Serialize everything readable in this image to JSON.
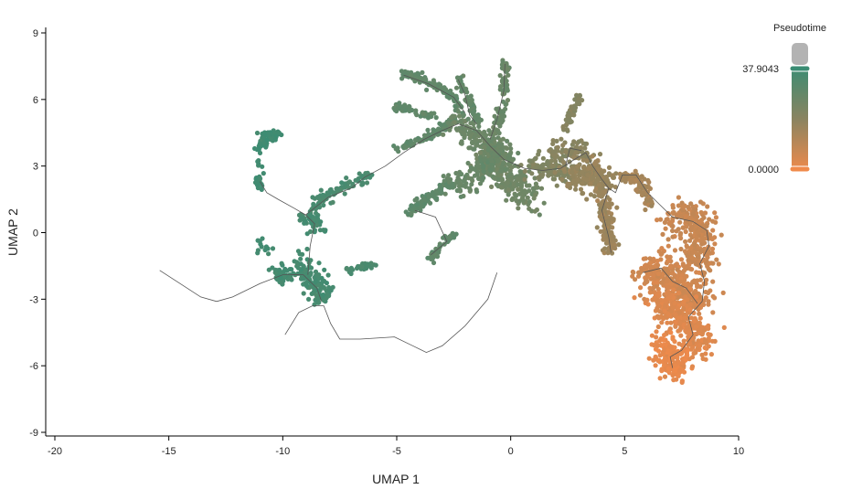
{
  "chart_data": {
    "type": "scatter",
    "title": "",
    "xlabel": "UMAP 1",
    "ylabel": "UMAP 2",
    "xlim": [
      -20,
      10
    ],
    "ylim": [
      -9,
      9
    ],
    "x_ticks": [
      -20,
      -15,
      -10,
      -5,
      0,
      5,
      10
    ],
    "y_ticks": [
      -9,
      -6,
      -3,
      0,
      3,
      6,
      9
    ],
    "grid": false,
    "legend": {
      "title": "Pseudotime",
      "position": "right",
      "max_label": "37.9043",
      "min_label": "0.0000",
      "max_value": 37.9043,
      "min_value": 0.0,
      "na_color": "#b3b3b3"
    },
    "colors": {
      "high": "#3a8c73",
      "mid": "#8a8460",
      "low": "#f08a4b",
      "trajectory": "#555555"
    },
    "clusters": [
      {
        "path": [
          [
            -10.8,
            4.4
          ],
          [
            -10.6,
            4.3
          ],
          [
            -10.3,
            4.4
          ],
          [
            -10.1,
            4.5
          ]
        ],
        "pseudotime": 36.5,
        "n": 40,
        "spread": 0.12
      },
      {
        "path": [
          [
            -11.1,
            3.7
          ],
          [
            -10.9,
            4.0
          ],
          [
            -10.6,
            4.2
          ]
        ],
        "pseudotime": 36.5,
        "n": 25,
        "spread": 0.14
      },
      {
        "path": [
          [
            -11.0,
            3.2
          ],
          [
            -11.05,
            2.6
          ],
          [
            -11.0,
            2.1
          ]
        ],
        "pseudotime": 36.0,
        "n": 20,
        "spread": 0.1
      },
      {
        "path": [
          [
            -9.2,
            0.6
          ],
          [
            -8.5,
            1.3
          ],
          [
            -7.5,
            1.9
          ],
          [
            -6.8,
            2.3
          ],
          [
            -6.2,
            2.6
          ]
        ],
        "pseudotime": 34.0,
        "n": 100,
        "spread": 0.14
      },
      {
        "path": [
          [
            -9.0,
            0.6
          ],
          [
            -8.7,
            0.4
          ],
          [
            -8.4,
            0.3
          ]
        ],
        "pseudotime": 35.0,
        "n": 35,
        "spread": 0.22
      },
      {
        "path": [
          [
            -10.5,
            -1.8
          ],
          [
            -9.8,
            -1.9
          ],
          [
            -9.0,
            -1.9
          ],
          [
            -8.4,
            -2.3
          ],
          [
            -8.1,
            -3.0
          ]
        ],
        "pseudotime": 35.5,
        "n": 100,
        "spread": 0.22
      },
      {
        "path": [
          [
            -9.2,
            -1.3
          ],
          [
            -8.8,
            -2.0
          ],
          [
            -8.5,
            -2.6
          ],
          [
            -8.3,
            -3.1
          ]
        ],
        "pseudotime": 35.0,
        "n": 75,
        "spread": 0.3
      },
      {
        "path": [
          [
            -7.2,
            -1.7
          ],
          [
            -6.6,
            -1.5
          ],
          [
            -5.9,
            -1.4
          ]
        ],
        "pseudotime": 33.5,
        "n": 35,
        "spread": 0.1
      },
      {
        "path": [
          [
            -11.0,
            -0.4
          ],
          [
            -10.6,
            -0.9
          ]
        ],
        "pseudotime": 36.0,
        "n": 12,
        "spread": 0.15
      },
      {
        "path": [
          [
            -10.2,
            -2.2
          ],
          [
            -9.9,
            -1.9
          ]
        ],
        "pseudotime": 35.5,
        "n": 8,
        "spread": 0.12
      },
      {
        "path": [
          [
            -4.9,
            3.8
          ],
          [
            -4.0,
            4.2
          ],
          [
            -3.0,
            4.7
          ],
          [
            -2.4,
            5.1
          ]
        ],
        "pseudotime": 29.0,
        "n": 90,
        "spread": 0.1
      },
      {
        "path": [
          [
            -4.8,
            7.2
          ],
          [
            -4.0,
            7.0
          ],
          [
            -3.3,
            6.6
          ],
          [
            -2.6,
            6.2
          ],
          [
            -2.1,
            5.4
          ]
        ],
        "pseudotime": 28.5,
        "n": 110,
        "spread": 0.11
      },
      {
        "path": [
          [
            -5.1,
            5.7
          ],
          [
            -4.5,
            5.6
          ],
          [
            -3.8,
            5.3
          ],
          [
            -3.3,
            5.2
          ]
        ],
        "pseudotime": 29.0,
        "n": 55,
        "spread": 0.1
      },
      {
        "path": [
          [
            -2.3,
            6.9
          ],
          [
            -2.0,
            6.3
          ],
          [
            -1.7,
            5.6
          ],
          [
            -1.4,
            5.0
          ]
        ],
        "pseudotime": 28.0,
        "n": 70,
        "spread": 0.1
      },
      {
        "path": [
          [
            -0.25,
            7.7
          ],
          [
            -0.25,
            7.0
          ],
          [
            -0.3,
            6.2
          ]
        ],
        "pseudotime": 26.5,
        "n": 50,
        "spread": 0.08
      },
      {
        "path": [
          [
            -0.3,
            5.8
          ],
          [
            -0.5,
            5.0
          ],
          [
            -0.8,
            4.3
          ],
          [
            -1.0,
            3.8
          ]
        ],
        "pseudotime": 26.5,
        "n": 60,
        "spread": 0.12
      },
      {
        "path": [
          [
            -2.4,
            4.9
          ],
          [
            -1.8,
            4.5
          ],
          [
            -1.2,
            4.0
          ],
          [
            -0.6,
            3.6
          ],
          [
            0.0,
            3.2
          ]
        ],
        "pseudotime": 26.0,
        "n": 160,
        "spread": 0.28
      },
      {
        "path": [
          [
            -1.2,
            3.6
          ],
          [
            -0.8,
            2.9
          ],
          [
            -0.2,
            2.5
          ],
          [
            0.4,
            2.2
          ],
          [
            0.9,
            1.4
          ]
        ],
        "pseudotime": 25.0,
        "n": 220,
        "spread": 0.35
      },
      {
        "path": [
          [
            -2.6,
            2.1
          ],
          [
            -1.8,
            2.5
          ],
          [
            -1.2,
            2.9
          ],
          [
            -0.5,
            3.3
          ]
        ],
        "pseudotime": 27.0,
        "n": 120,
        "spread": 0.3
      },
      {
        "path": [
          [
            -4.5,
            0.9
          ],
          [
            -3.8,
            1.4
          ],
          [
            -3.0,
            2.0
          ],
          [
            -2.6,
            2.3
          ]
        ],
        "pseudotime": 29.0,
        "n": 90,
        "spread": 0.12
      },
      {
        "path": [
          [
            -3.5,
            -1.2
          ],
          [
            -3.0,
            -0.6
          ],
          [
            -2.5,
            0.0
          ]
        ],
        "pseudotime": 29.0,
        "n": 45,
        "spread": 0.1
      },
      {
        "path": [
          [
            0.8,
            3.1
          ],
          [
            1.4,
            2.9
          ],
          [
            2.0,
            2.8
          ],
          [
            2.6,
            2.6
          ]
        ],
        "pseudotime": 21.0,
        "n": 110,
        "spread": 0.28
      },
      {
        "path": [
          [
            1.8,
            3.6
          ],
          [
            2.5,
            3.8
          ],
          [
            3.1,
            3.6
          ],
          [
            3.5,
            3.3
          ]
        ],
        "pseudotime": 19.0,
        "n": 90,
        "spread": 0.25
      },
      {
        "path": [
          [
            2.4,
            4.6
          ],
          [
            2.6,
            5.3
          ],
          [
            2.9,
            5.9
          ],
          [
            3.0,
            6.3
          ]
        ],
        "pseudotime": 20.0,
        "n": 50,
        "spread": 0.1
      },
      {
        "path": [
          [
            2.6,
            2.7
          ],
          [
            3.2,
            2.5
          ],
          [
            3.8,
            2.3
          ],
          [
            4.2,
            2.1
          ]
        ],
        "pseudotime": 17.0,
        "n": 140,
        "spread": 0.3
      },
      {
        "path": [
          [
            3.6,
            3.0
          ],
          [
            3.9,
            2.6
          ],
          [
            4.2,
            2.2
          ]
        ],
        "pseudotime": 16.5,
        "n": 60,
        "spread": 0.25
      },
      {
        "path": [
          [
            3.9,
            2.0
          ],
          [
            4.1,
            1.3
          ],
          [
            4.2,
            0.5
          ],
          [
            4.3,
            -0.3
          ],
          [
            4.4,
            -0.9
          ]
        ],
        "pseudotime": 15.5,
        "n": 140,
        "spread": 0.15
      },
      {
        "path": [
          [
            4.8,
            2.5
          ],
          [
            5.3,
            2.6
          ],
          [
            5.8,
            2.2
          ],
          [
            6.0,
            1.6
          ],
          [
            6.1,
            1.2
          ]
        ],
        "pseudotime": 13.5,
        "n": 75,
        "spread": 0.14
      },
      {
        "path": [
          [
            7.2,
            0.5
          ],
          [
            7.8,
            0.8
          ],
          [
            8.2,
            0.6
          ],
          [
            8.3,
            -0.5
          ],
          [
            8.2,
            -1.6
          ]
        ],
        "pseudotime": 7.5,
        "n": 260,
        "spread": 0.4
      },
      {
        "path": [
          [
            5.8,
            -1.8
          ],
          [
            6.6,
            -1.6
          ],
          [
            7.2,
            -2.2
          ],
          [
            7.8,
            -2.6
          ],
          [
            8.3,
            -3.2
          ]
        ],
        "pseudotime": 6.0,
        "n": 320,
        "spread": 0.42
      },
      {
        "path": [
          [
            6.4,
            -3.0
          ],
          [
            7.1,
            -3.5
          ],
          [
            7.8,
            -4.0
          ],
          [
            8.2,
            -4.6
          ],
          [
            8.0,
            -5.2
          ]
        ],
        "pseudotime": 3.5,
        "n": 300,
        "spread": 0.4
      },
      {
        "path": [
          [
            6.6,
            -5.0
          ],
          [
            7.0,
            -5.4
          ],
          [
            7.3,
            -5.8
          ],
          [
            7.1,
            -6.1
          ],
          [
            6.8,
            -5.7
          ]
        ],
        "pseudotime": 1.5,
        "n": 190,
        "spread": 0.32
      }
    ],
    "trajectory": [
      [
        [
          -15.4,
          -1.7
        ],
        [
          -14.5,
          -2.3
        ],
        [
          -13.6,
          -2.9
        ],
        [
          -12.9,
          -3.1
        ],
        [
          -12.2,
          -2.9
        ],
        [
          -11.0,
          -2.3
        ],
        [
          -10.0,
          -1.9
        ],
        [
          -9.1,
          -1.9
        ],
        [
          -8.5,
          -2.5
        ],
        [
          -8.3,
          -3.1
        ]
      ],
      [
        [
          -9.9,
          -4.6
        ],
        [
          -9.3,
          -3.6
        ],
        [
          -8.7,
          -3.3
        ],
        [
          -8.2,
          -3.3
        ],
        [
          -7.9,
          -4.1
        ],
        [
          -7.5,
          -4.8
        ],
        [
          -6.6,
          -4.8
        ],
        [
          -5.1,
          -4.7
        ],
        [
          -4.3,
          -5.1
        ],
        [
          -3.7,
          -5.4
        ],
        [
          -3.0,
          -5.1
        ],
        [
          -2.0,
          -4.2
        ],
        [
          -1.0,
          -3.0
        ],
        [
          -0.6,
          -1.8
        ]
      ],
      [
        [
          -11.0,
          2.3
        ],
        [
          -10.7,
          1.8
        ],
        [
          -10.2,
          1.5
        ],
        [
          -9.5,
          1.1
        ],
        [
          -9.0,
          0.8
        ],
        [
          -8.6,
          0.4
        ],
        [
          -8.8,
          -0.6
        ],
        [
          -8.9,
          -1.9
        ]
      ],
      [
        [
          -9.0,
          0.8
        ],
        [
          -8.0,
          1.6
        ],
        [
          -7.0,
          2.0
        ],
        [
          -6.4,
          2.5
        ],
        [
          -5.5,
          3.0
        ],
        [
          -4.7,
          3.6
        ],
        [
          -3.8,
          4.2
        ],
        [
          -3.0,
          4.6
        ],
        [
          -2.3,
          4.9
        ],
        [
          -1.5,
          4.6
        ],
        [
          -0.9,
          3.9
        ],
        [
          -0.3,
          3.3
        ],
        [
          0.6,
          2.9
        ],
        [
          1.4,
          2.8
        ],
        [
          2.2,
          2.9
        ],
        [
          2.8,
          3.3
        ],
        [
          3.3,
          3.6
        ],
        [
          3.6,
          3.0
        ],
        [
          4.0,
          2.4
        ],
        [
          4.3,
          2.0
        ],
        [
          4.6,
          1.8
        ],
        [
          4.9,
          2.6
        ],
        [
          5.5,
          2.6
        ],
        [
          6.0,
          1.8
        ],
        [
          6.4,
          1.4
        ],
        [
          7.1,
          0.7
        ],
        [
          8.0,
          0.5
        ],
        [
          8.6,
          0.1
        ],
        [
          8.7,
          -0.6
        ],
        [
          8.3,
          -1.4
        ],
        [
          8.5,
          -2.2
        ],
        [
          8.4,
          -3.1
        ],
        [
          7.8,
          -3.8
        ],
        [
          8.0,
          -4.6
        ],
        [
          7.5,
          -5.3
        ],
        [
          7.0,
          -5.6
        ],
        [
          7.1,
          -6.1
        ]
      ],
      [
        [
          4.3,
          2.0
        ],
        [
          4.0,
          1.0
        ],
        [
          4.3,
          -0.2
        ],
        [
          4.4,
          -0.9
        ]
      ],
      [
        [
          5.8,
          -1.8
        ],
        [
          6.6,
          -1.6
        ],
        [
          7.1,
          -2.2
        ],
        [
          7.7,
          -2.5
        ],
        [
          8.2,
          -3.2
        ]
      ],
      [
        [
          -3.5,
          -1.0
        ],
        [
          -2.8,
          -0.4
        ],
        [
          -3.3,
          0.7
        ],
        [
          -4.2,
          1.0
        ]
      ],
      [
        [
          -2.3,
          6.9
        ],
        [
          -2.0,
          6.2
        ],
        [
          -1.8,
          5.3
        ],
        [
          -1.5,
          4.9
        ]
      ],
      [
        [
          -4.7,
          7.1
        ],
        [
          -3.6,
          6.7
        ],
        [
          -2.5,
          6.1
        ],
        [
          -2.0,
          5.4
        ]
      ],
      [
        [
          -0.25,
          7.6
        ],
        [
          -0.3,
          6.4
        ],
        [
          -0.6,
          5.1
        ],
        [
          -0.9,
          4.2
        ]
      ],
      [
        [
          2.4,
          3.0
        ],
        [
          2.6,
          3.8
        ],
        [
          3.1,
          3.7
        ]
      ],
      [
        [
          -9.6,
          -1.9
        ],
        [
          -9.3,
          -1.9
        ]
      ]
    ]
  }
}
